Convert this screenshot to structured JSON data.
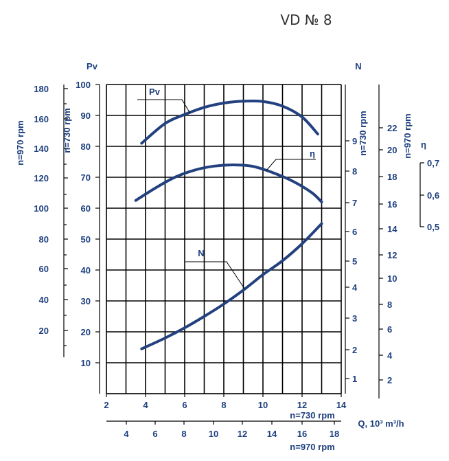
{
  "title": "VD № 8",
  "chart_data": {
    "type": "line",
    "title": "VD № 8",
    "xlabel": "Q, 10³ m³/h",
    "x_axes": [
      {
        "speed": "n=730 rpm",
        "ticks": [
          2,
          4,
          6,
          8,
          10,
          12,
          14
        ],
        "range": [
          2,
          14
        ]
      },
      {
        "speed": "n=970 rpm",
        "ticks": [
          4,
          6,
          8,
          10,
          12,
          14,
          16,
          18
        ],
        "range": [
          2.66,
          18.6
        ]
      }
    ],
    "y_axes": [
      {
        "id": "pv970",
        "header": "",
        "speed": "n=970 rpm",
        "ticks": [
          20,
          40,
          60,
          80,
          100,
          120,
          140,
          160,
          180
        ]
      },
      {
        "id": "pv730",
        "header": "Pv",
        "speed": "n=730 rpm",
        "ticks": [
          10,
          20,
          30,
          40,
          50,
          60,
          70,
          80,
          90,
          100
        ],
        "range": [
          0,
          100
        ]
      },
      {
        "id": "n730",
        "header": "N",
        "speed": "n=730 rpm",
        "ticks": [
          1,
          2,
          3,
          4,
          5,
          6,
          7,
          8,
          9
        ]
      },
      {
        "id": "n970",
        "header": "",
        "speed": "n=970 rpm",
        "ticks": [
          2,
          4,
          6,
          8,
          10,
          12,
          14,
          16,
          18,
          20,
          22
        ]
      },
      {
        "id": "eta",
        "header": "η",
        "ticks": [
          "0,5",
          "0,6",
          "0,7"
        ]
      }
    ],
    "series": [
      {
        "name": "Pv",
        "axis": "pv730",
        "x": [
          3.8,
          5,
          6,
          7,
          8,
          9,
          10,
          11,
          12,
          12.8
        ],
        "values": [
          81,
          87.4,
          90.3,
          92.6,
          94,
          94.6,
          94.5,
          93,
          89.5,
          84
        ]
      },
      {
        "name": "η",
        "axis": "pv730",
        "x": [
          3.5,
          4.5,
          5.5,
          6.5,
          7.5,
          8.5,
          9.5,
          10.5,
          11.5,
          12.5,
          13
        ],
        "values": [
          62.5,
          66.5,
          70,
          72.3,
          73.6,
          74,
          73.5,
          71.5,
          68.8,
          65,
          62
        ]
      },
      {
        "name": "N",
        "axis": "pv730",
        "x": [
          3.8,
          5,
          6,
          7,
          8,
          9,
          10,
          11,
          12,
          13
        ],
        "values": [
          14.5,
          18,
          21.3,
          25,
          29,
          33.5,
          38.5,
          43,
          48.5,
          55
        ]
      }
    ],
    "grid": true
  }
}
